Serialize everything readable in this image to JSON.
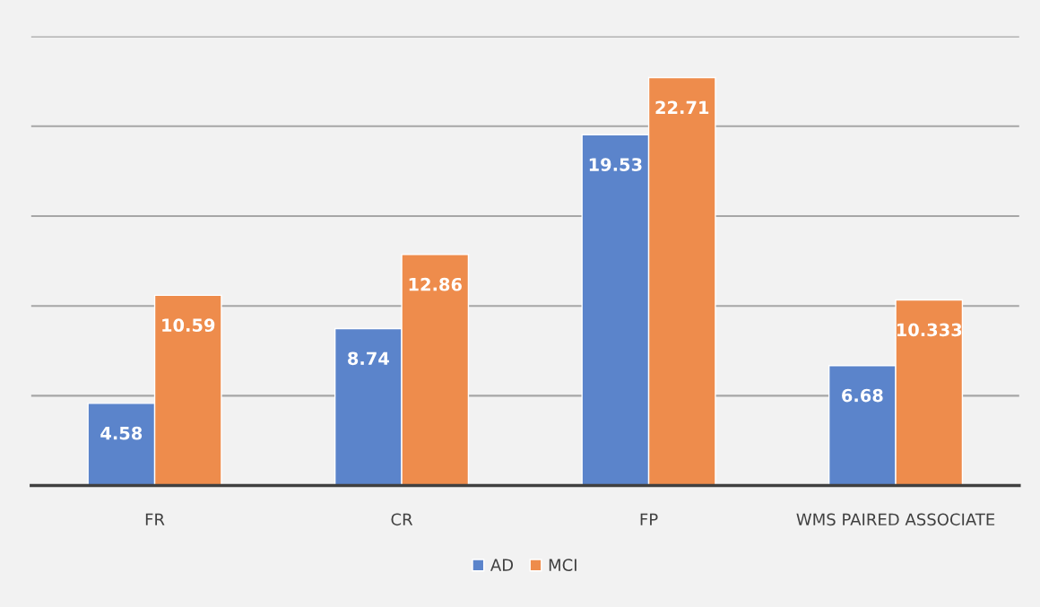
{
  "chart_data": {
    "type": "bar",
    "categories": [
      "FR",
      "CR",
      "FP",
      "WMS PAIRED ASSOCIATE"
    ],
    "series": [
      {
        "name": "AD",
        "color": "#5b84cb",
        "values": [
          4.58,
          8.74,
          19.53,
          6.68
        ],
        "value_labels": [
          "4.58",
          "8.74",
          "19.53",
          "6.68"
        ]
      },
      {
        "name": "MCI",
        "color": "#ee8c4c",
        "values": [
          10.59,
          12.86,
          22.71,
          10.333
        ],
        "value_labels": [
          "10.59",
          "12.86",
          "22.71",
          "10.333"
        ]
      }
    ],
    "ylim": [
      0,
      25
    ],
    "yticks": [
      {
        "value": 0,
        "label": null
      },
      {
        "value": 5,
        "label": null
      },
      {
        "value": 10,
        "label": null
      },
      {
        "value": 15,
        "label": null
      },
      {
        "value": 20,
        "label": null
      },
      {
        "value": 25,
        "label": null
      }
    ],
    "tick_labels": "x",
    "grid": "y",
    "legend": "bottom"
  }
}
